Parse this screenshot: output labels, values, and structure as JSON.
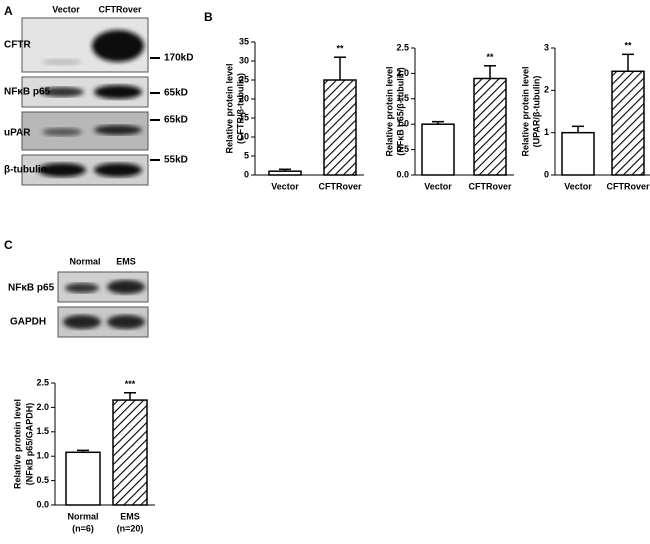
{
  "panels": {
    "a": "A",
    "b": "B",
    "c": "C"
  },
  "blot_a": {
    "lanes": [
      "Vector",
      "CFTRover"
    ],
    "rows": [
      "CFTR",
      "NFκB p65",
      "uPAR",
      "β-tubulin"
    ],
    "markers": [
      "170kD",
      "65kD",
      "65kD",
      "55kD"
    ]
  },
  "blot_c": {
    "lanes": [
      "Normal",
      "EMS"
    ],
    "rows": [
      "NFκB p65",
      "GAPDH"
    ]
  },
  "chart_data": [
    {
      "type": "bar",
      "ylabel": [
        "Relative protein level",
        "(CFTR/β-tubulin)"
      ],
      "categories": [
        "Vector",
        "CFTRover"
      ],
      "values": [
        1,
        25
      ],
      "errors": [
        0.5,
        6
      ],
      "annotation": "**",
      "ylim": [
        0,
        35
      ],
      "yticks": [
        0,
        5,
        10,
        15,
        20,
        25,
        30,
        35
      ]
    },
    {
      "type": "bar",
      "ylabel": [
        "Relative protein level",
        "(NFκB p65/β-tubulin)"
      ],
      "categories": [
        "Vector",
        "CFTRover"
      ],
      "values": [
        1.0,
        1.9
      ],
      "errors": [
        0.05,
        0.25
      ],
      "annotation": "**",
      "ylim": [
        0,
        2.5
      ],
      "yticks": [
        {
          "value": 0,
          "label": "0.0"
        },
        0.5,
        {
          "value": 1,
          "label": "1.0"
        },
        1.5,
        {
          "value": 2,
          "label": "2.0"
        },
        2.5
      ]
    },
    {
      "type": "bar",
      "ylabel": [
        "Relative protein level",
        "(UPAR/β-tubulin)"
      ],
      "categories": [
        "Vector",
        "CFTRover"
      ],
      "values": [
        1.0,
        2.45
      ],
      "errors": [
        0.15,
        0.4
      ],
      "annotation": "**",
      "ylim": [
        0,
        3
      ],
      "yticks": [
        0,
        1,
        2,
        3
      ]
    },
    {
      "type": "bar",
      "ylabel": [
        "Relative protein level",
        "(NFκB p65/GAPDH)"
      ],
      "categories": [
        "Normal",
        "EMS"
      ],
      "category_notes": [
        "(n=6)",
        "(n=20)"
      ],
      "values": [
        1.08,
        2.15
      ],
      "errors": [
        0.04,
        0.15
      ],
      "annotation": "***",
      "ylim": [
        0,
        2.5
      ],
      "yticks": [
        {
          "value": 0,
          "label": "0.0"
        },
        0.5,
        {
          "value": 1,
          "label": "1.0"
        },
        1.5,
        {
          "value": 2,
          "label": "2.0"
        },
        2.5
      ]
    }
  ]
}
